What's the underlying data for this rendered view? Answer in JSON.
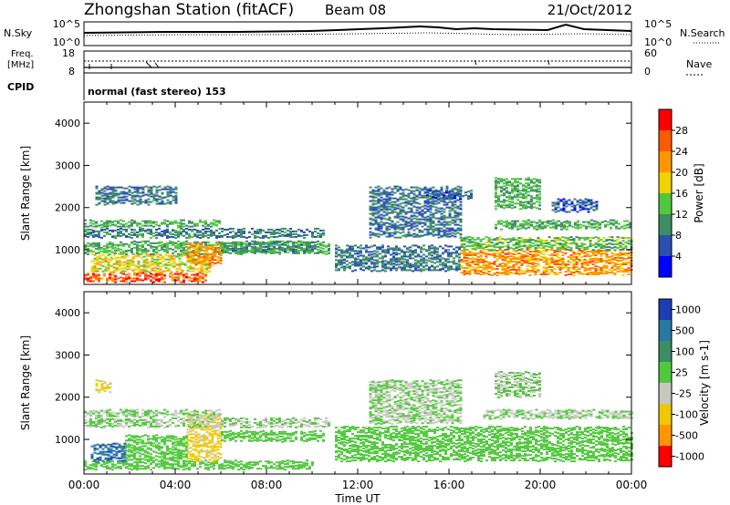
{
  "header": {
    "station": "Zhongshan Station (fitACF)",
    "beam": "Beam 08",
    "date": "21/Oct/2012"
  },
  "top_panels": {
    "nsky_label": "N.Sky",
    "nsearch_label": "N.Search",
    "count_tick_top": "10^5",
    "count_tick_bottom": "10^0",
    "freq_label_line1": "Freq.",
    "freq_label_line2": "[MHz]",
    "freq_tick_top": "18",
    "freq_tick_bottom": "8",
    "nave_label": "Nave",
    "nave_tick_top": "60",
    "nave_tick_bottom": "0",
    "cpid_label": "CPID",
    "cpid_text": "normal (fast stereo) 153"
  },
  "power_panel": {
    "ylabel": "Slant Range [km]",
    "yticks": [
      "1000",
      "2000",
      "3000",
      "4000"
    ],
    "colorbar_label": "Power [dB]",
    "colorbar_ticks": [
      "4",
      "8",
      "12",
      "16",
      "20",
      "24",
      "28"
    ],
    "colors": [
      "#0000ff",
      "#2850b4",
      "#3c8c64",
      "#50c83c",
      "#f0d200",
      "#ff9600",
      "#ff5a00",
      "#ff0000"
    ]
  },
  "velocity_panel": {
    "ylabel": "Slant Range [km]",
    "yticks": [
      "1000",
      "2000",
      "3000",
      "4000"
    ],
    "colorbar_label": "Velocity [m s-1]",
    "colorbar_ticks": [
      "1000",
      "500",
      "100",
      "25",
      "-25",
      "-100",
      "-500",
      "-1000"
    ],
    "colors": [
      "#1e3cb4",
      "#2878a0",
      "#3c8c64",
      "#50c83c",
      "#c8c8c0",
      "#f0c800",
      "#ff9600",
      "#ff0000"
    ]
  },
  "time_axis": {
    "ticks": [
      "00:00",
      "04:00",
      "08:00",
      "12:00",
      "16:00",
      "20:00",
      "00:00"
    ],
    "label": "Time UT"
  },
  "chart_data": {
    "type": "heatmap",
    "title": "Zhongshan Station (fitACF)",
    "x_range_hours": [
      0,
      24
    ],
    "y_range_km": [
      180,
      4500
    ],
    "power": {
      "unit": "dB",
      "scale": [
        0,
        32
      ],
      "segments": [
        {
          "t0": 0.0,
          "t1": 5.3,
          "r0": 250,
          "r1": 450,
          "value": 26
        },
        {
          "t0": 0.3,
          "t1": 5.5,
          "r0": 500,
          "r1": 900,
          "value": 18
        },
        {
          "t0": 0.0,
          "t1": 10.8,
          "r0": 900,
          "r1": 1200,
          "value": 12
        },
        {
          "t0": 0.0,
          "t1": 10.5,
          "r0": 1300,
          "r1": 1500,
          "value": 9
        },
        {
          "t0": 0.0,
          "t1": 6.0,
          "r0": 1550,
          "r1": 1700,
          "value": 12
        },
        {
          "t0": 0.5,
          "t1": 4.0,
          "r0": 2100,
          "r1": 2500,
          "value": 8
        },
        {
          "t0": 4.5,
          "t1": 6.0,
          "r0": 650,
          "r1": 1150,
          "value": 22
        },
        {
          "t0": 6.0,
          "t1": 10.0,
          "r0": 950,
          "r1": 1200,
          "value": 10
        },
        {
          "t0": 11.0,
          "t1": 16.5,
          "r0": 500,
          "r1": 1100,
          "value": 8
        },
        {
          "t0": 12.5,
          "t1": 16.5,
          "r0": 1300,
          "r1": 2500,
          "value": 8
        },
        {
          "t0": 16.5,
          "t1": 24.0,
          "r0": 400,
          "r1": 1000,
          "value": 22
        },
        {
          "t0": 16.5,
          "t1": 24.0,
          "r0": 1000,
          "r1": 1300,
          "value": 13
        },
        {
          "t0": 18.0,
          "t1": 24.0,
          "r0": 1500,
          "r1": 1700,
          "value": 12
        },
        {
          "t0": 15.0,
          "t1": 17.0,
          "r0": 2200,
          "r1": 2400,
          "value": 6
        },
        {
          "t0": 18.0,
          "t1": 20.0,
          "r0": 2000,
          "r1": 2700,
          "value": 12
        },
        {
          "t0": 20.5,
          "t1": 22.5,
          "r0": 1900,
          "r1": 2200,
          "value": 6
        }
      ]
    },
    "velocity": {
      "unit": "m s-1",
      "scale": [
        -1000,
        1000
      ],
      "segments": [
        {
          "t0": 0.0,
          "t1": 10.0,
          "r0": 300,
          "r1": 500,
          "value": 150
        },
        {
          "t0": 0.3,
          "t1": 1.8,
          "r0": 500,
          "r1": 900,
          "value": 700
        },
        {
          "t0": 1.8,
          "t1": 4.5,
          "r0": 500,
          "r1": 1100,
          "value": 150
        },
        {
          "t0": 4.5,
          "t1": 6.0,
          "r0": 500,
          "r1": 1600,
          "value": -300
        },
        {
          "t0": 0.0,
          "t1": 10.8,
          "r0": 1300,
          "r1": 1500,
          "value": 0
        },
        {
          "t0": 0.0,
          "t1": 6.0,
          "r0": 1550,
          "r1": 1700,
          "value": 0
        },
        {
          "t0": 6.0,
          "t1": 10.5,
          "r0": 950,
          "r1": 1200,
          "value": 150
        },
        {
          "t0": 11.0,
          "t1": 24.0,
          "r0": 500,
          "r1": 1300,
          "value": 150
        },
        {
          "t0": 12.5,
          "t1": 16.5,
          "r0": 1400,
          "r1": 2400,
          "value": 0
        },
        {
          "t0": 17.5,
          "t1": 24.0,
          "r0": 1500,
          "r1": 1700,
          "value": 0
        },
        {
          "t0": 18.0,
          "t1": 20.0,
          "r0": 2000,
          "r1": 2600,
          "value": 0
        },
        {
          "t0": 0.5,
          "t1": 1.2,
          "r0": 2100,
          "r1": 2400,
          "value": -300
        }
      ]
    }
  }
}
